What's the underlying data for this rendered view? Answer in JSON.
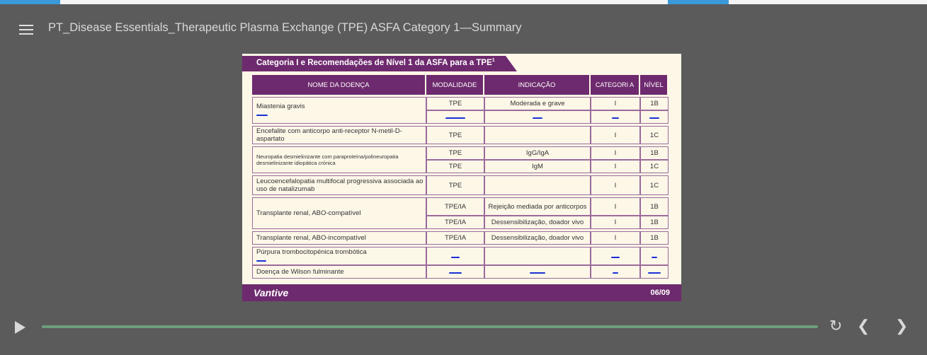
{
  "player": {
    "title": "PT_Disease Essentials_Therapeutic Plasma Exchange (TPE) ASFA Category 1—Summary",
    "menu_icon": "hamburger-menu-icon",
    "progress": 1.0,
    "progress_color": "#6e9e7c",
    "controls": {
      "play_icon": "play-icon",
      "replay_icon": "replay-icon",
      "prev_icon": "chevron-left-icon",
      "next_icon": "chevron-right-icon"
    }
  },
  "slide": {
    "header_title": "Categoria I e Recomendações de Nível 1 da ASFA para a TPE",
    "header_sup": "1",
    "accent_color": "#6e2a6e",
    "columns": [
      "NOME DA DOENÇA",
      "MODALIDADE",
      "INDICAÇÃO",
      "CATEGORI A",
      "NÍVEL"
    ],
    "rows": [
      {
        "name": "Miastenia gravis",
        "modality": "TPE",
        "indication": "Moderada e grave",
        "category": "I",
        "level": "1B"
      },
      {
        "name": "Encefalite com anticorpo anti-receptor N-metil-D-aspartato",
        "modality": "TPE",
        "indication": "",
        "category": "I",
        "level": "1C"
      },
      {
        "name": "Neuropatia desmielinizante com paraproteína/polineuropatia desmielinizante idiopática crónica",
        "modality": "TPE",
        "indication": "IgG/IgA",
        "category": "I",
        "level": "1B"
      },
      {
        "modality": "TPE",
        "indication": "IgM",
        "category": "I",
        "level": "1C"
      },
      {
        "name": "Leucoencefalopatia multifocal progressiva associada ao uso de natalizumab",
        "modality": "TPE",
        "indication": "",
        "category": "I",
        "level": "1C"
      },
      {
        "name": "Transplante renal, ABO-compatível",
        "modality": "TPE/IA",
        "indication": "Rejeição mediada por anticorpos",
        "category": "I",
        "level": "1B"
      },
      {
        "modality": "TPE/IA",
        "indication": "Dessensibilização, doador vivo",
        "category": "I",
        "level": "1B"
      },
      {
        "name": "Transplante renal, ABO-incompatível",
        "modality": "TPE/IA",
        "indication": "Dessensibilização, doador vivo",
        "category": "I",
        "level": "1B"
      },
      {
        "name": "Púrpura trombocitopénica trombótica"
      },
      {
        "name": "Doença de Wilson fulminante"
      }
    ],
    "footer_brand": "Vantive",
    "page": "06/09"
  }
}
